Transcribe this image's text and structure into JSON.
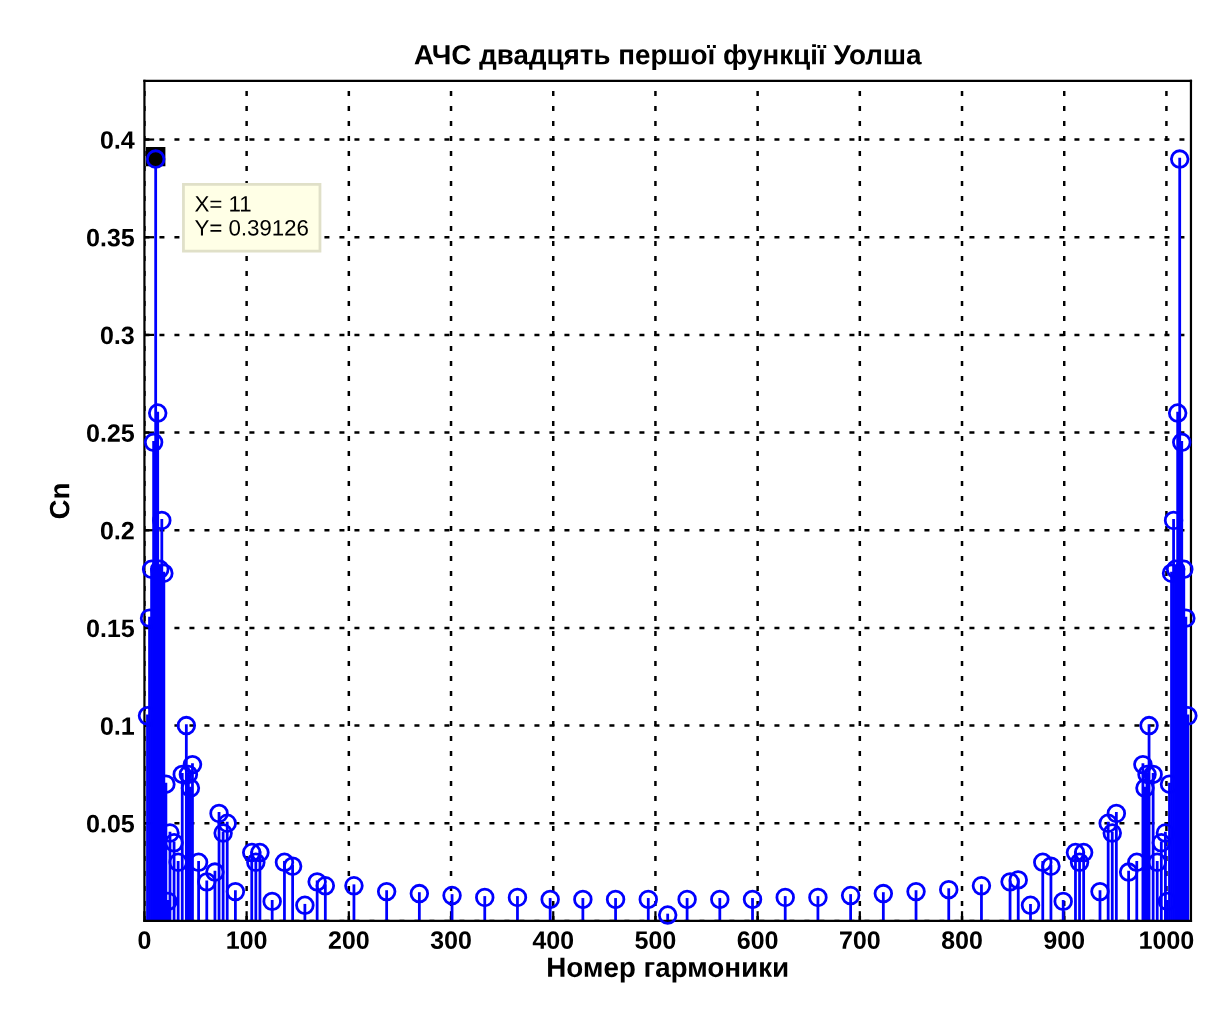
{
  "chart_data": {
    "type": "lollipop",
    "title": "АЧС двадцять першої функції Уолша",
    "xlabel": "Номер гармоники",
    "ylabel": "Cn",
    "x": [
      3,
      5,
      7,
      9,
      11,
      13,
      15,
      17,
      19,
      21,
      23,
      25,
      29,
      33,
      37,
      41,
      43,
      45,
      47,
      53,
      61,
      69,
      73,
      77,
      81,
      89,
      105,
      109,
      113,
      125,
      137,
      145,
      157,
      169,
      177,
      205,
      237,
      269,
      301,
      333,
      365,
      397,
      429,
      461,
      493,
      512,
      531,
      563,
      595,
      627,
      659,
      691,
      723,
      755,
      787,
      819,
      847,
      855,
      867,
      879,
      887,
      899,
      911,
      915,
      919,
      935,
      943,
      947,
      951,
      963,
      971,
      977,
      979,
      981,
      983,
      987,
      991,
      995,
      999,
      1001,
      1003,
      1005,
      1007,
      1009,
      1011,
      1013,
      1015,
      1017,
      1019,
      1021
    ],
    "series": [
      {
        "color": "#0000ff",
        "values": [
          0.105,
          0.155,
          0.18,
          0.245,
          0.39,
          0.26,
          0.18,
          0.205,
          0.178,
          0.07,
          0.01,
          0.045,
          0.04,
          0.03,
          0.075,
          0.1,
          0.075,
          0.068,
          0.08,
          0.03,
          0.02,
          0.025,
          0.055,
          0.045,
          0.05,
          0.015,
          0.035,
          0.03,
          0.035,
          0.01,
          0.03,
          0.028,
          0.008,
          0.02,
          0.018,
          0.018,
          0.015,
          0.014,
          0.013,
          0.012,
          0.012,
          0.011,
          0.011,
          0.011,
          0.011,
          0.003,
          0.011,
          0.011,
          0.011,
          0.012,
          0.012,
          0.013,
          0.014,
          0.015,
          0.016,
          0.018,
          0.02,
          0.021,
          0.008,
          0.03,
          0.028,
          0.01,
          0.035,
          0.03,
          0.035,
          0.015,
          0.05,
          0.045,
          0.055,
          0.025,
          0.03,
          0.08,
          0.068,
          0.075,
          0.1,
          0.075,
          0.03,
          0.04,
          0.045,
          0.01,
          0.07,
          0.178,
          0.205,
          0.18,
          0.26,
          0.39,
          0.245,
          0.18,
          0.155,
          0.105
        ]
      }
    ],
    "xlim": [
      0,
      1024
    ],
    "xticks": [
      0,
      100,
      200,
      300,
      400,
      500,
      600,
      700,
      800,
      900,
      1000
    ],
    "ylim": [
      0,
      0.43
    ],
    "yticks": [
      {
        "value": 0,
        "label": null
      },
      0.05,
      0.1,
      0.15,
      0.2,
      0.25,
      0.3,
      0.35,
      0.4
    ],
    "grid": true,
    "marker": "circle",
    "line_style": "solid",
    "annotations": [
      {
        "text": "X= 11\nY= 0.39126",
        "x": 11,
        "y": 0.39126
      }
    ]
  }
}
